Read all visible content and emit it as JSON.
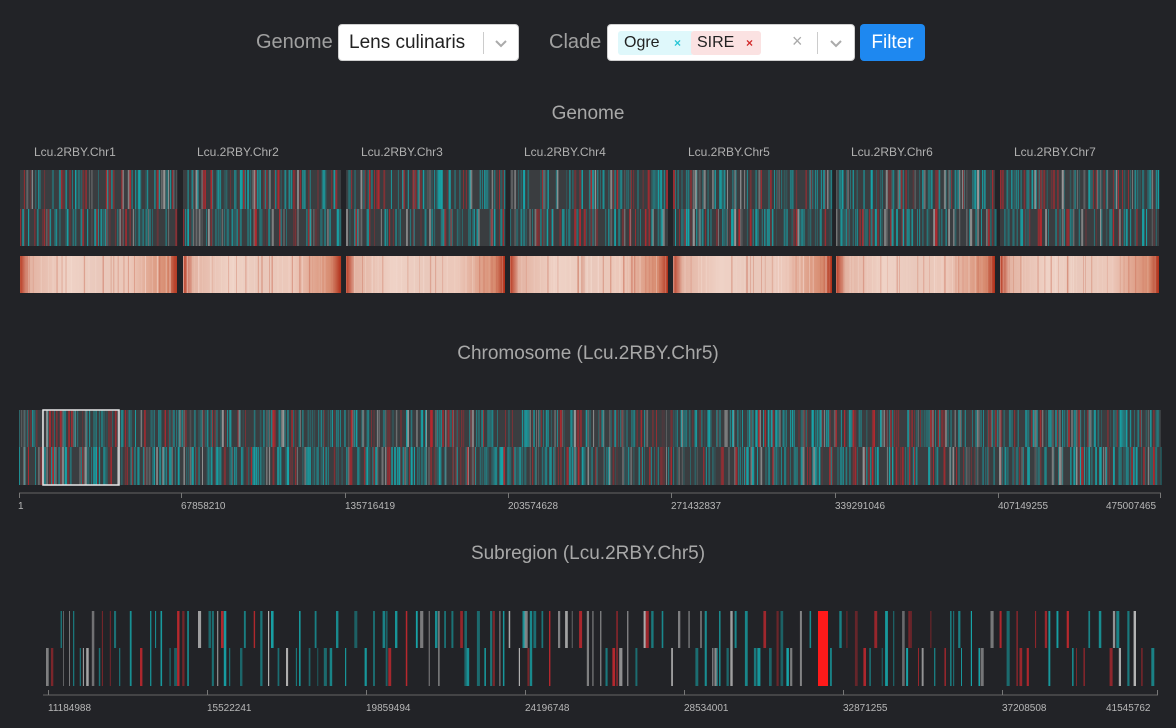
{
  "filters": {
    "genome_label": "Genome",
    "genome_value": "Lens culinaris",
    "clade_label": "Clade",
    "clade_tags": [
      {
        "label": "Ogre",
        "bg": "#dff8fb",
        "x_color": "#27c6d6"
      },
      {
        "label": "SIRE",
        "bg": "#fbe2e2",
        "x_color": "#d22b2b"
      }
    ],
    "clear_symbol": "×",
    "filter_button": "Filter"
  },
  "genome": {
    "title": "Genome",
    "chromosomes": [
      "Lcu.2RBY.Chr1",
      "Lcu.2RBY.Chr2",
      "Lcu.2RBY.Chr3",
      "Lcu.2RBY.Chr4",
      "Lcu.2RBY.Chr5",
      "Lcu.2RBY.Chr6",
      "Lcu.2RBY.Chr7"
    ]
  },
  "chromosome": {
    "title": "Chromosome (Lcu.2RBY.Chr5)",
    "ticks": [
      "1",
      "67858210",
      "135716419",
      "203574628",
      "271432837",
      "339291046",
      "407149255",
      "475007465"
    ]
  },
  "subregion": {
    "title": "Subregion (Lcu.2RBY.Chr5)",
    "ticks": [
      "11184988",
      "15522241",
      "19859494",
      "24196748",
      "28534001",
      "32871255",
      "37208508",
      "41545762"
    ]
  },
  "colors": {
    "background": "#222327",
    "ogre": "#17a6aa",
    "sire": "#b8282e",
    "grey": "#9a9a9a",
    "accent": "#1e88f0"
  }
}
